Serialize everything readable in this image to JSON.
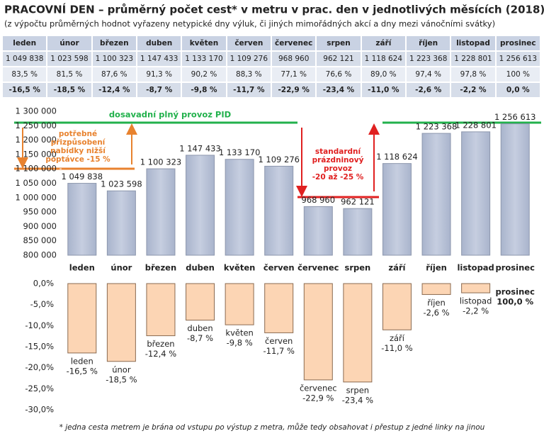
{
  "title": "PRACOVNÍ DEN – průměrný počet cest* v metru v prac. den v jednotlivých měsících (2018)",
  "subtitle": "(z výpočtu průměrných hodnot vyřazeny netypické dny výluk, či jiných mimořádných akcí a dny mezi vánočními svátky)",
  "table": {
    "header": [
      "leden",
      "únor",
      "březen",
      "duben",
      "květen",
      "červen",
      "červenec",
      "srpen",
      "září",
      "říjen",
      "listopad",
      "prosinec"
    ],
    "rows": [
      [
        "1 049 838",
        "1 023 598",
        "1 100 323",
        "1 147 433",
        "1 133 170",
        "1 109 276",
        "968 960",
        "962 121",
        "1 118 624",
        "1 223 368",
        "1 228 801",
        "1 256 613"
      ],
      [
        "83,5 %",
        "81,5 %",
        "87,6 %",
        "91,3 %",
        "90,2 %",
        "88,3 %",
        "77,1 %",
        "76,6 %",
        "89,0 %",
        "97,4 %",
        "97,8 %",
        "100 %"
      ],
      [
        "-16,5 %",
        "-18,5 %",
        "-12,4 %",
        "-8,7 %",
        "-9,8 %",
        "-11,7 %",
        "-22,9 %",
        "-23,4 %",
        "-11,0 %",
        "-2,6 %",
        "-2,2 %",
        "0,0 %"
      ]
    ]
  },
  "footnote": "* jedna cesta metrem je brána od vstupu po výstup z metra, může tedy obsahovat i přestup z jedné linky na jinou",
  "chart_data": [
    {
      "type": "bar",
      "color": "#b7c1d8",
      "categories": [
        "leden",
        "únor",
        "březen",
        "duben",
        "květen",
        "červen",
        "červenec",
        "srpen",
        "září",
        "říjen",
        "listopad",
        "prosinec"
      ],
      "values": [
        1049838,
        1023598,
        1100323,
        1147433,
        1133170,
        1109276,
        968960,
        962121,
        1118624,
        1223368,
        1228801,
        1256613
      ],
      "value_labels": [
        "1 049 838",
        "1 023 598",
        "1 100 323",
        "1 147 433",
        "1 133 170",
        "1 109 276",
        "968 960",
        "962 121",
        "1 118 624",
        "1 223 368",
        "1 228 801",
        "1 256 613"
      ],
      "ylim": [
        800000,
        1300000
      ],
      "yticks": [
        {
          "value": 800000,
          "label": "800 000"
        },
        {
          "value": 850000,
          "label": "850 000"
        },
        {
          "value": 900000,
          "label": "900 000"
        },
        {
          "value": 950000,
          "label": "950 000"
        },
        {
          "value": 1000000,
          "label": "1 000 000"
        },
        {
          "value": 1050000,
          "label": "1 050 000"
        },
        {
          "value": 1100000,
          "label": "1 100 000"
        },
        {
          "value": 1150000,
          "label": "1 150 000"
        },
        {
          "value": 1200000,
          "label": "1 200 000"
        },
        {
          "value": 1250000,
          "label": "1 250 000"
        },
        {
          "value": 1300000,
          "label": "1 300 000"
        }
      ],
      "annotations": {
        "full": "dosavadní plný provoz PID",
        "reduce": [
          "potřebné",
          "přizpůsobení",
          "nabídky nižší",
          "poptávce -15 %"
        ],
        "summer": [
          "standardní",
          "prázdninový",
          "provoz",
          "-20 až -25 %"
        ]
      }
    },
    {
      "type": "bar",
      "color": "#fcd5b4",
      "categories": [
        "leden",
        "únor",
        "březen",
        "duben",
        "květen",
        "červen",
        "červenec",
        "srpen",
        "září",
        "říjen",
        "listopad",
        "prosinec"
      ],
      "values": [
        -16.5,
        -18.5,
        -12.4,
        -8.7,
        -9.8,
        -11.7,
        -22.9,
        -23.4,
        -11.0,
        -2.6,
        -2.2,
        0.0
      ],
      "value_labels": [
        "-16,5 %",
        "-18,5 %",
        "-12,4 %",
        "-8,7 %",
        "-9,8 %",
        "-11,7 %",
        "-22,9 %",
        "-23,4 %",
        "-11,0 %",
        "-2,6 %",
        "-2,2 %",
        null
      ],
      "annotation": "100,0 %",
      "ylim": [
        -30,
        0
      ],
      "yticks": [
        {
          "value": 0,
          "label": "0,0%"
        },
        {
          "value": -5,
          "label": "-5,0%"
        },
        {
          "value": -10,
          "label": "-10,0%"
        },
        {
          "value": -15,
          "label": "-15,0%"
        },
        {
          "value": -20,
          "label": "-20,0%"
        },
        {
          "value": -25,
          "label": "-25,0%"
        },
        {
          "value": -30,
          "label": "-30,0%"
        }
      ]
    }
  ]
}
